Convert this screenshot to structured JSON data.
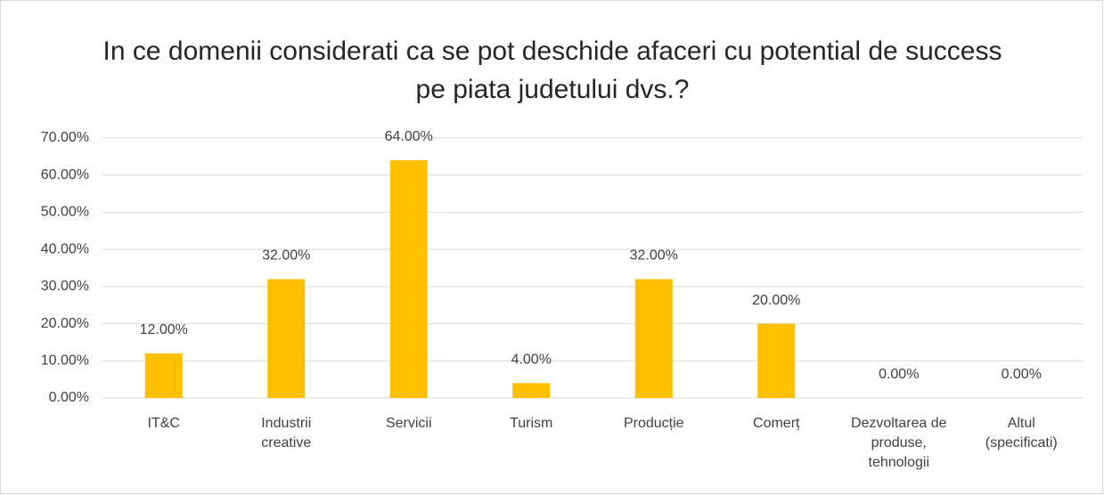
{
  "chart_data": {
    "type": "bar",
    "title": "In ce domenii considerati ca se pot deschide afaceri cu potential de success pe piata judetului dvs.?",
    "categories": [
      "IT&C",
      "Industrii creative",
      "Servicii",
      "Turism",
      "Producție",
      "Comerț",
      "Dezvoltarea de produse, tehnologii",
      "Altul (specificati)"
    ],
    "values": [
      12,
      32,
      64,
      4,
      32,
      20,
      0,
      0
    ],
    "value_labels": [
      "12.00%",
      "32.00%",
      "64.00%",
      "4.00%",
      "32.00%",
      "20.00%",
      "0.00%",
      "0.00%"
    ],
    "color": "#ffc000",
    "ylim": [
      0,
      70
    ],
    "yticks": [
      {
        "value": 0,
        "label": "0.00%"
      },
      {
        "value": 10,
        "label": "10.00%"
      },
      {
        "value": 20,
        "label": "20.00%"
      },
      {
        "value": 30,
        "label": "30.00%"
      },
      {
        "value": 40,
        "label": "40.00%"
      },
      {
        "value": 50,
        "label": "50.00%"
      },
      {
        "value": 60,
        "label": "60.00%"
      },
      {
        "value": 70,
        "label": "70.00%"
      }
    ],
    "grid": true
  }
}
